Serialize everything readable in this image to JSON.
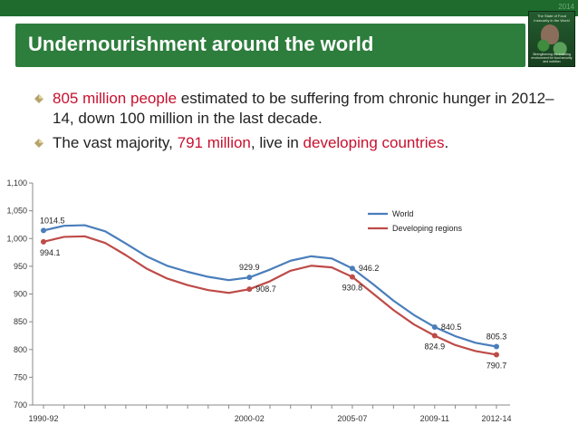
{
  "header": {
    "year_tag": "2014",
    "title": "Undernourishment around the world",
    "cover": {
      "title": "The State of Food Insecurity in the World",
      "footer": "Strengthening the enabling environment for food security and nutrition"
    }
  },
  "bullets": [
    {
      "parts": [
        {
          "text": "805 million people",
          "highlight": true
        },
        {
          "text": " estimated to be suffering from chronic hunger in 2012–14, down 100 million in the last decade.",
          "highlight": false
        }
      ]
    },
    {
      "parts": [
        {
          "text": "The vast majority, ",
          "highlight": false
        },
        {
          "text": "791 million",
          "highlight": true
        },
        {
          "text": ", live in ",
          "highlight": false
        },
        {
          "text": "developing countries",
          "highlight": true
        },
        {
          "text": ".",
          "highlight": false
        }
      ]
    }
  ],
  "colors": {
    "world": "#4a7ebb",
    "developing": "#be4b48",
    "title_bar": "#2d7d3c",
    "highlight": "#c8102e"
  },
  "chart_data": {
    "type": "line",
    "ylim": [
      700,
      1100
    ],
    "yticks": [
      700,
      750,
      800,
      850,
      900,
      950,
      1000,
      1050,
      1100
    ],
    "ytick_labels": [
      "700",
      "750",
      "800",
      "850",
      "900",
      "950",
      "1,000",
      "1,050",
      "1,100"
    ],
    "xlabels": [
      {
        "index": 0,
        "text": "1990-92"
      },
      {
        "index": 10,
        "text": "2000-02"
      },
      {
        "index": 15,
        "text": "2005-07"
      },
      {
        "index": 19,
        "text": "2009-11"
      },
      {
        "index": 22,
        "text": "2012-14"
      }
    ],
    "legend": {
      "position": "top-right"
    },
    "series": [
      {
        "name": "World",
        "color_key": "world",
        "values": [
          1014.5,
          1023,
          1024,
          1013,
          991,
          968,
          951,
          940,
          931,
          925,
          929.9,
          944,
          960,
          968,
          964,
          946.2,
          918,
          888,
          862,
          840.5,
          824,
          812,
          805.3
        ],
        "labels": [
          {
            "index": 0,
            "text": "1014.5",
            "pos": "above"
          },
          {
            "index": 10,
            "text": "929.9",
            "pos": "above"
          },
          {
            "index": 15,
            "text": "946.2",
            "pos": "right"
          },
          {
            "index": 19,
            "text": "840.5",
            "pos": "right"
          },
          {
            "index": 22,
            "text": "805.3",
            "pos": "above"
          }
        ]
      },
      {
        "name": "Developing regions",
        "color_key": "developing",
        "values": [
          994.1,
          1003,
          1004,
          992,
          970,
          946,
          928,
          916,
          907,
          902,
          908.7,
          923,
          942,
          951,
          948,
          930.8,
          901,
          871,
          845,
          824.9,
          808,
          797,
          790.7
        ],
        "labels": [
          {
            "index": 0,
            "text": "994.1",
            "pos": "below"
          },
          {
            "index": 10,
            "text": "908.7",
            "pos": "right"
          },
          {
            "index": 15,
            "text": "930.8",
            "pos": "below"
          },
          {
            "index": 19,
            "text": "824.9",
            "pos": "below"
          },
          {
            "index": 22,
            "text": "790.7",
            "pos": "below"
          }
        ]
      }
    ]
  }
}
